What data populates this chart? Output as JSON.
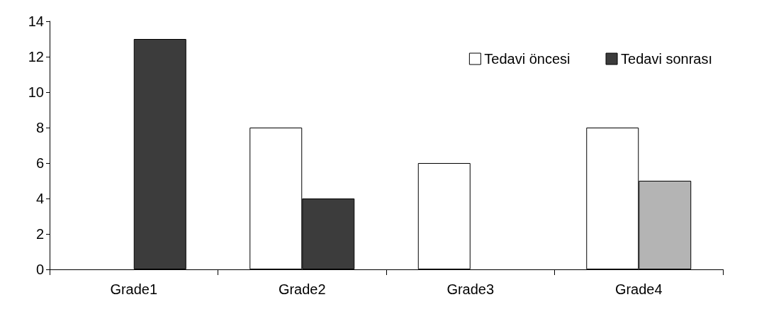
{
  "chart_data": {
    "type": "bar",
    "categories": [
      "Grade1",
      "Grade2",
      "Grade3",
      "Grade4"
    ],
    "series": [
      {
        "name": "Tedavi öncesi",
        "color": "#ffffff",
        "values": [
          0,
          8,
          6,
          8
        ]
      },
      {
        "name": "Tedavi sonrası",
        "color": "#3c3c3c",
        "colors": [
          "#3c3c3c",
          "#3c3c3c",
          "#3c3c3c",
          "#b4b4b4"
        ],
        "values": [
          13,
          4,
          0,
          5
        ]
      }
    ],
    "ylim": [
      0,
      14
    ],
    "yticks": [
      0,
      2,
      4,
      6,
      8,
      10,
      12,
      14
    ],
    "grid": false,
    "legend": "top right"
  }
}
